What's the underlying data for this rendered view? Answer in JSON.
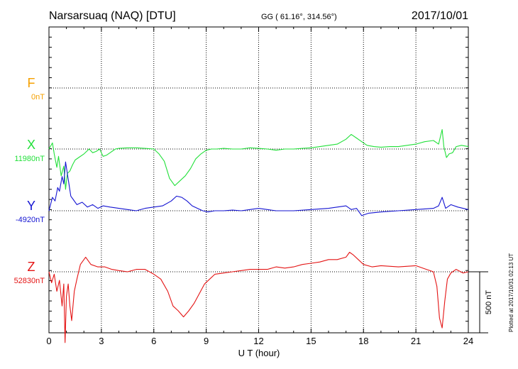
{
  "header": {
    "station": "Narsarsuaq (NAQ)  [DTU]",
    "coords": "GG ( 61.16°, 314.56°)",
    "date": "2017/10/01"
  },
  "footnote": "Plotted at 2017/10/31 02:13 UT",
  "chart_data": {
    "type": "line",
    "xlabel": "U T (hour)",
    "xlim": [
      0,
      24
    ],
    "x_ticks": [
      "0",
      "3",
      "6",
      "9",
      "12",
      "15",
      "18",
      "21",
      "24"
    ],
    "y_unit": "nT",
    "scale_bar": {
      "label": "500 nT",
      "value": 500
    },
    "grid": true,
    "series": [
      {
        "name": "F",
        "baseline_label": "0nT",
        "color": "#f5a000",
        "x": [],
        "y": []
      },
      {
        "name": "X",
        "baseline_label": "11980nT",
        "color": "#22e03a",
        "x": [
          0.0,
          0.2,
          0.3,
          0.45,
          0.55,
          0.7,
          0.85,
          0.95,
          1.05,
          1.2,
          1.35,
          1.5,
          1.7,
          2.0,
          2.3,
          2.5,
          2.7,
          2.9,
          3.1,
          3.3,
          3.5,
          3.8,
          4.0,
          4.5,
          5.0,
          5.5,
          6.0,
          6.3,
          6.6,
          6.9,
          7.2,
          7.5,
          7.8,
          8.1,
          8.4,
          8.7,
          9.0,
          9.3,
          9.6,
          10.0,
          10.5,
          11.0,
          11.5,
          12.0,
          12.5,
          13.0,
          13.5,
          14.0,
          14.5,
          15.0,
          15.5,
          16.0,
          16.5,
          17.0,
          17.3,
          17.6,
          17.9,
          18.2,
          18.6,
          19.0,
          19.5,
          20.0,
          20.5,
          21.0,
          21.5,
          22.0,
          22.3,
          22.5,
          22.6,
          22.75,
          22.9,
          23.1,
          23.3,
          23.6,
          24.0
        ],
        "y": [
          0,
          50,
          -40,
          -150,
          -60,
          -220,
          -140,
          -330,
          -200,
          -180,
          -130,
          -90,
          -70,
          -40,
          0,
          -30,
          -20,
          0,
          -60,
          -50,
          -30,
          0,
          5,
          10,
          10,
          5,
          0,
          -40,
          -100,
          -240,
          -300,
          -260,
          -220,
          -160,
          -80,
          -40,
          -10,
          0,
          0,
          5,
          0,
          0,
          10,
          5,
          0,
          -10,
          0,
          0,
          5,
          10,
          20,
          30,
          40,
          80,
          120,
          90,
          60,
          30,
          20,
          15,
          20,
          20,
          30,
          40,
          60,
          70,
          40,
          160,
          20,
          -70,
          -40,
          -30,
          20,
          30,
          20
        ]
      },
      {
        "name": "Y",
        "baseline_label": "-4920nT",
        "color": "#1414d2",
        "x": [
          0.0,
          0.2,
          0.35,
          0.5,
          0.6,
          0.75,
          0.85,
          0.95,
          1.1,
          1.25,
          1.4,
          1.6,
          1.9,
          2.2,
          2.5,
          2.8,
          3.1,
          3.5,
          4.0,
          4.5,
          5.0,
          5.5,
          6.0,
          6.5,
          7.0,
          7.3,
          7.6,
          7.9,
          8.2,
          8.5,
          8.8,
          9.1,
          9.5,
          10.0,
          10.5,
          11.0,
          11.5,
          12.0,
          13.0,
          14.0,
          15.0,
          16.0,
          16.5,
          17.0,
          17.3,
          17.6,
          17.9,
          18.3,
          19.0,
          20.0,
          21.0,
          22.0,
          22.3,
          22.5,
          22.7,
          23.0,
          23.4,
          24.0
        ],
        "y": [
          0,
          110,
          80,
          190,
          160,
          280,
          220,
          400,
          260,
          120,
          90,
          50,
          70,
          30,
          50,
          20,
          40,
          30,
          20,
          10,
          0,
          20,
          30,
          40,
          80,
          120,
          110,
          80,
          40,
          20,
          0,
          -10,
          0,
          0,
          5,
          0,
          10,
          20,
          0,
          0,
          10,
          20,
          30,
          40,
          10,
          20,
          -40,
          -20,
          -10,
          0,
          10,
          20,
          40,
          110,
          20,
          50,
          30,
          10
        ]
      },
      {
        "name": "Z",
        "baseline_label": "52830nT",
        "color": "#e41414",
        "x": [
          0.0,
          0.15,
          0.3,
          0.45,
          0.6,
          0.75,
          0.85,
          0.92,
          1.0,
          1.1,
          1.2,
          1.3,
          1.45,
          1.6,
          1.8,
          2.1,
          2.4,
          2.8,
          3.2,
          3.6,
          4.0,
          4.5,
          5.0,
          5.5,
          6.0,
          6.4,
          6.8,
          7.1,
          7.4,
          7.7,
          8.0,
          8.3,
          8.6,
          8.9,
          9.2,
          9.5,
          10.0,
          10.5,
          11.0,
          11.5,
          12.0,
          12.5,
          13.0,
          13.5,
          14.0,
          14.5,
          15.0,
          15.5,
          16.0,
          16.5,
          17.0,
          17.2,
          17.4,
          17.7,
          18.0,
          18.5,
          19.0,
          20.0,
          21.0,
          21.6,
          22.0,
          22.2,
          22.35,
          22.5,
          22.65,
          22.8,
          23.0,
          23.3,
          23.7,
          24.0
        ],
        "y": [
          0,
          -90,
          -20,
          -160,
          -70,
          -280,
          -100,
          -580,
          -200,
          -100,
          -280,
          -400,
          -160,
          -60,
          60,
          120,
          60,
          40,
          40,
          20,
          10,
          0,
          20,
          20,
          -20,
          -60,
          -160,
          -280,
          -320,
          -370,
          -320,
          -260,
          -180,
          -100,
          -60,
          -20,
          -10,
          0,
          10,
          20,
          20,
          20,
          40,
          30,
          40,
          60,
          70,
          80,
          100,
          100,
          120,
          160,
          140,
          100,
          60,
          40,
          50,
          40,
          50,
          20,
          0,
          -120,
          -380,
          -460,
          -240,
          -60,
          -10,
          20,
          -10,
          0
        ]
      }
    ]
  }
}
